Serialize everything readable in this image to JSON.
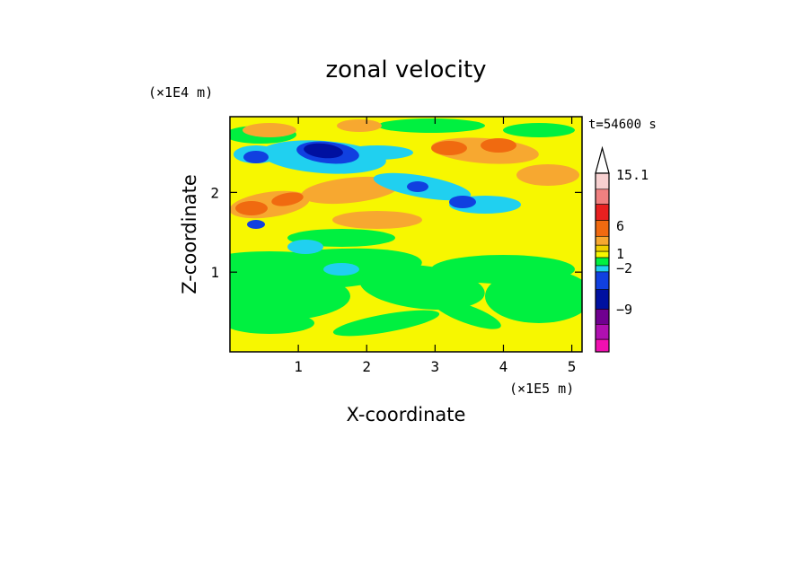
{
  "chart_data": {
    "type": "heatmap",
    "title": "zonal velocity",
    "xlabel": "X-coordinate",
    "ylabel": "Z-coordinate",
    "x_unit": "(×1E5 m)",
    "y_unit": "(×1E4 m)",
    "time_label": "t=54600 s",
    "xlim": [
      0,
      5.15
    ],
    "ylim": [
      0,
      2.95
    ],
    "x_ticks": [
      1,
      2,
      3,
      4,
      5
    ],
    "y_ticks": [
      1,
      2
    ],
    "colorbar": {
      "labeled_levels": [
        "15.1",
        "6",
        "1",
        "−2",
        "−9"
      ],
      "colors_top_to_bottom": [
        "#f7d0d0",
        "#f08080",
        "#e82020",
        "#f06a10",
        "#f7a830",
        "#f0d000",
        "#f7f700",
        "#00f040",
        "#20d0f0",
        "#1040e0",
        "#0010a0",
        "#700090",
        "#b010b0",
        "#f010b0"
      ]
    },
    "regions": [
      {
        "x": 0.5,
        "z": 0.5,
        "value": 0.0
      },
      {
        "x": 1.2,
        "z": 0.4,
        "value": 1.0
      },
      {
        "x": 3.0,
        "z": 0.4,
        "value": 1.0
      },
      {
        "x": 4.5,
        "z": 0.4,
        "value": 0.0
      },
      {
        "x": 1.0,
        "z": 1.3,
        "value": 0.0
      },
      {
        "x": 3.5,
        "z": 1.3,
        "value": 1.0
      },
      {
        "x": 1.4,
        "z": 2.5,
        "value": -9.0
      },
      {
        "x": 1.9,
        "z": 2.1,
        "value": 6.0
      },
      {
        "x": 0.3,
        "z": 1.8,
        "value": 6.0
      },
      {
        "x": 3.8,
        "z": 2.6,
        "value": 6.0
      },
      {
        "x": 3.4,
        "z": 1.9,
        "value": -6.0
      },
      {
        "x": 0.3,
        "z": 2.5,
        "value": -6.0
      },
      {
        "x": 0.3,
        "z": 1.6,
        "value": -6.0
      }
    ]
  }
}
